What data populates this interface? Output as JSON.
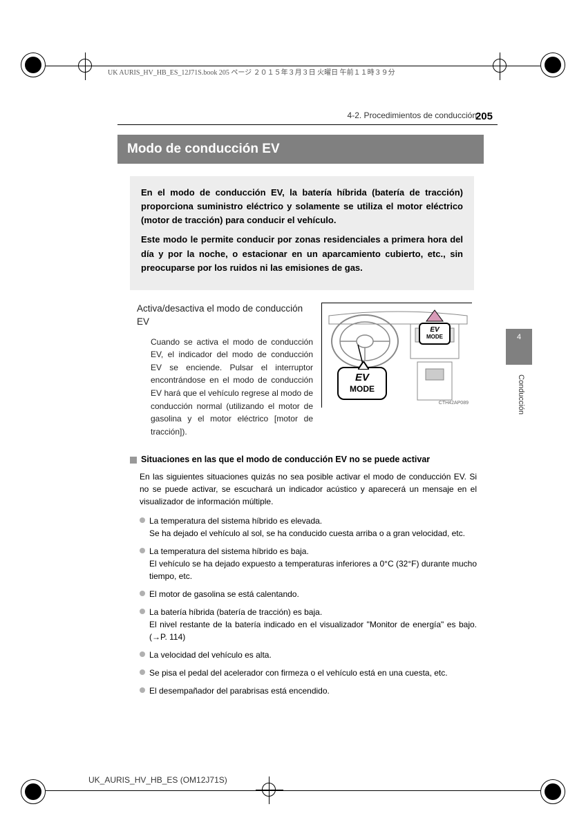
{
  "meta": {
    "header_text": "UK AURIS_HV_HB_ES_12J71S.book  205 ページ  ２０１５年３月３日  火曜日  午前１１時３９分",
    "footer_code": "UK_AURIS_HV_HB_ES (OM12J71S)",
    "breadcrumb": "4-2. Procedimientos de conducción",
    "page_number": "205",
    "side_tab": "4",
    "side_label": "Conducción"
  },
  "title": "Modo de conducción EV",
  "intro": {
    "p1": "En el modo de conducción EV, la batería híbrida (batería de tracción) proporciona suministro eléctrico y solamente se utiliza el motor eléctrico (motor de tracción) para conducir el vehículo.",
    "p2": "Este modo le permite conducir por zonas residenciales a primera hora del día y por la noche, o estacionar en un aparcamiento cubierto, etc., sin preocuparse por los ruidos ni las emisiones de gas."
  },
  "subsection": {
    "heading": "Activa/desactiva el modo de conducción EV",
    "body": "Cuando se activa el modo de conducción EV, el indicador del modo de conducción EV se enciende. Pulsar el interruptor encontrándose en el modo de conducción EV hará que el vehículo regrese al modo de conducción normal (utilizando el motor de gasolina y el motor eléctrico [motor de tracción])."
  },
  "diagram": {
    "callout_button": "EV\nMODE",
    "callout_indicator": "EV\nMODE",
    "image_code": "CTH42AP089"
  },
  "notes": {
    "title": "Situaciones en las que el modo de conducción EV no se puede activar",
    "intro": "En las siguientes situaciones quizás no sea posible activar el modo de conducción EV. Si no se puede activar, se escuchará un indicador acústico y aparecerá un mensaje en el visualizador de información múltiple.",
    "items": [
      "La temperatura del sistema híbrido es elevada.\nSe ha dejado el vehículo al sol, se ha conducido cuesta arriba o a gran velocidad, etc.",
      "La temperatura del sistema híbrido es baja.\nEl vehículo se ha dejado expuesto a temperaturas inferiores a 0°C (32°F) durante mucho tiempo, etc.",
      "El motor de gasolina se está calentando.",
      "La batería híbrida (batería de tracción) es baja.\nEl nivel restante de la batería indicado en el visualizador \"Monitor de energía\" es bajo. (→P. 114)",
      "La velocidad del vehículo es alta.",
      "Se pisa el pedal del acelerador con firmeza o el vehículo está en una cuesta, etc.",
      "El desempañador del parabrisas está encendido."
    ]
  }
}
